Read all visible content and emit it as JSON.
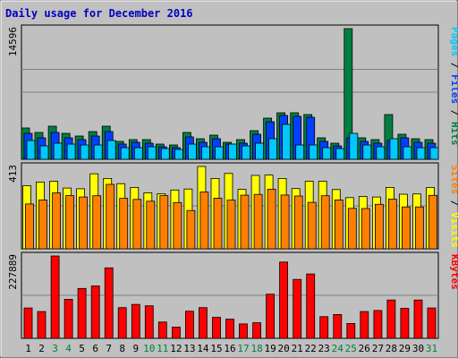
{
  "chart_data": {
    "type": "bar",
    "title": "Daily usage for December 2016",
    "days": [
      "1",
      "2",
      "3",
      "4",
      "5",
      "6",
      "7",
      "8",
      "9",
      "10",
      "11",
      "12",
      "13",
      "14",
      "15",
      "16",
      "17",
      "18",
      "19",
      "20",
      "21",
      "22",
      "23",
      "24",
      "25",
      "26",
      "27",
      "28",
      "29",
      "30",
      "31"
    ],
    "weekend_days": [
      "3",
      "4",
      "10",
      "11",
      "17",
      "18",
      "24",
      "25",
      "31"
    ],
    "panels": [
      {
        "id": "hits-files-pages",
        "max_label": "14596",
        "ymax": 14596,
        "label_parts": [
          {
            "text": "Pages",
            "color": "#00c8ff"
          },
          {
            "text": " / ",
            "color": "#000000"
          },
          {
            "text": "Files",
            "color": "#0040ff"
          },
          {
            "text": " / ",
            "color": "#000000"
          },
          {
            "text": "Hits",
            "color": "#008040"
          }
        ],
        "series": [
          {
            "name": "Hits",
            "color": "#008040",
            "values": [
              3500,
              3000,
              3700,
              2900,
              2600,
              3100,
              3700,
              2000,
              2200,
              2200,
              1700,
              1600,
              3000,
              2300,
              2700,
              1900,
              2200,
              3200,
              4600,
              5200,
              5200,
              5000,
              2400,
              1800,
              14596,
              2400,
              2200,
              5000,
              2800,
              2300,
              2200
            ]
          },
          {
            "name": "Files",
            "color": "#0040ff",
            "values": [
              2900,
              2400,
              3000,
              2400,
              2200,
              2600,
              3100,
              1700,
              1900,
              1800,
              1400,
              1300,
              2500,
              1900,
              2300,
              1700,
              1800,
              2800,
              4200,
              4900,
              4800,
              4700,
              2000,
              1500,
              2400,
              2000,
              1800,
              2100,
              2400,
              1900,
              1800
            ]
          },
          {
            "name": "Pages",
            "color": "#00c8ff",
            "values": [
              2100,
              1500,
              1800,
              1700,
              1600,
              1600,
              2100,
              1300,
              1300,
              1400,
              1200,
              1100,
              1700,
              1400,
              1400,
              1700,
              1500,
              1800,
              2300,
              3900,
              1600,
              1600,
              1300,
              1200,
              2900,
              1600,
              1400,
              2300,
              1400,
              1300,
              1300
            ]
          }
        ]
      },
      {
        "id": "visits-sites",
        "max_label": "413",
        "ymax": 413,
        "label_parts": [
          {
            "text": "Sites",
            "color": "#ff8000"
          },
          {
            "text": " / ",
            "color": "#000000"
          },
          {
            "text": "Visits",
            "color": "#ffff00"
          }
        ],
        "series": [
          {
            "name": "Visits",
            "color": "#ffff00",
            "values": [
              317,
              335,
              339,
              305,
              301,
              376,
              353,
              327,
              308,
              281,
              276,
              295,
              300,
              413,
              353,
              378,
              298,
              368,
              370,
              353,
              302,
              339,
              339,
              297,
              257,
              262,
              260,
              308,
              274,
              275,
              308
            ]
          },
          {
            "name": "Sites",
            "color": "#ff8000",
            "values": [
              225,
              245,
              280,
              267,
              260,
              266,
              323,
              253,
              248,
              239,
              267,
              232,
              192,
              285,
              254,
              244,
              269,
              273,
              299,
              270,
              265,
              233,
              266,
              245,
              203,
              202,
              223,
              249,
              210,
              210,
              268
            ]
          }
        ]
      },
      {
        "id": "kbytes",
        "max_label": "227889",
        "ymax": 227889,
        "label_parts": [
          {
            "text": "KBytes",
            "color": "#ff0000"
          }
        ],
        "series": [
          {
            "name": "KBytes",
            "color": "#ff0000",
            "values": [
              84000,
              74000,
              227889,
              108000,
              138000,
              145000,
              195000,
              85000,
              94000,
              90000,
              45000,
              31000,
              75000,
              85000,
              58000,
              53000,
              40000,
              43000,
              122000,
              211000,
              163000,
              178000,
              60000,
              66000,
              41000,
              74000,
              77000,
              106000,
              83000,
              106000,
              84000
            ]
          }
        ]
      }
    ]
  }
}
